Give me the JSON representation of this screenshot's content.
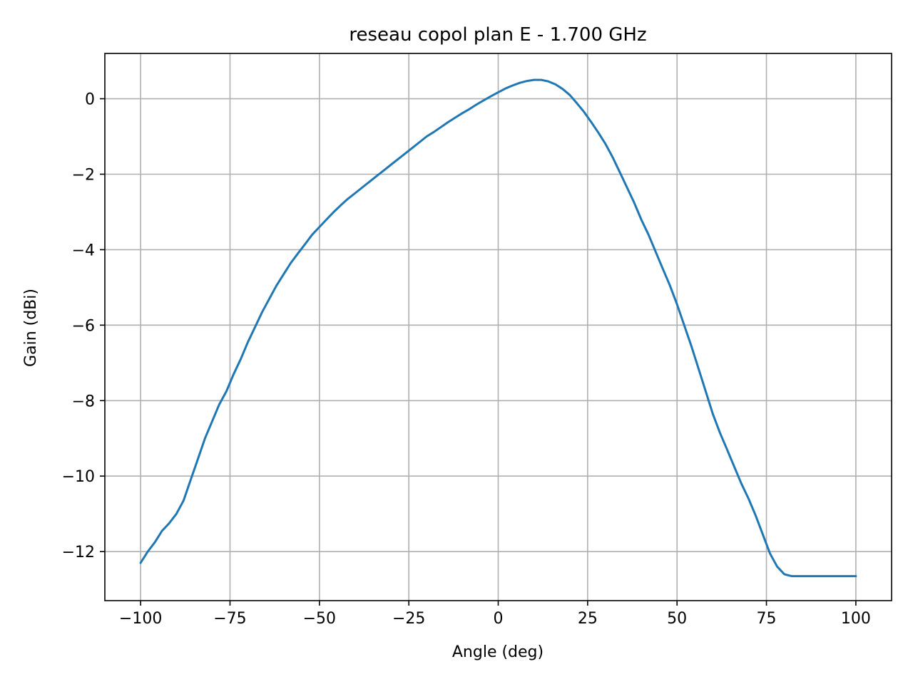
{
  "chart_data": {
    "type": "line",
    "title": "reseau copol plan E - 1.700 GHz",
    "xlabel": "Angle (deg)",
    "ylabel": "Gain (dBi)",
    "xlim": [
      -110,
      110
    ],
    "ylim": [
      -13.3,
      1.2
    ],
    "xticks": [
      -100,
      -75,
      -50,
      -25,
      0,
      25,
      50,
      75,
      100
    ],
    "xtick_labels": [
      "−100",
      "−75",
      "−50",
      "−25",
      "0",
      "25",
      "50",
      "75",
      "100"
    ],
    "yticks": [
      0,
      -2,
      -4,
      -6,
      -8,
      -10,
      -12
    ],
    "ytick_labels": [
      "0",
      "−2",
      "−4",
      "−6",
      "−8",
      "−10",
      "−12"
    ],
    "grid": true,
    "legend": "none",
    "series": [
      {
        "color": "#1f77b4",
        "x": [
          -100,
          -98,
          -96,
          -94,
          -92,
          -90,
          -88,
          -86,
          -84,
          -82,
          -80,
          -78,
          -76,
          -74,
          -72,
          -70,
          -68,
          -66,
          -64,
          -62,
          -60,
          -58,
          -56,
          -54,
          -52,
          -50,
          -48,
          -46,
          -44,
          -42,
          -40,
          -38,
          -36,
          -34,
          -32,
          -30,
          -28,
          -26,
          -24,
          -22,
          -20,
          -18,
          -16,
          -14,
          -12,
          -10,
          -8,
          -6,
          -4,
          -2,
          0,
          2,
          4,
          6,
          8,
          10,
          12,
          14,
          16,
          18,
          20,
          22,
          24,
          26,
          28,
          30,
          32,
          34,
          36,
          38,
          40,
          42,
          44,
          46,
          48,
          50,
          52,
          54,
          56,
          58,
          60,
          62,
          64,
          66,
          68,
          70,
          72,
          74,
          76,
          78,
          80,
          82,
          84,
          86,
          88,
          90,
          92,
          94,
          96,
          98,
          100
        ],
        "y": [
          -12.3,
          -12.0,
          -11.75,
          -11.45,
          -11.25,
          -11.0,
          -10.65,
          -10.1,
          -9.55,
          -9.0,
          -8.55,
          -8.1,
          -7.75,
          -7.3,
          -6.9,
          -6.45,
          -6.05,
          -5.65,
          -5.3,
          -4.95,
          -4.65,
          -4.35,
          -4.1,
          -3.85,
          -3.6,
          -3.4,
          -3.2,
          -3.0,
          -2.82,
          -2.65,
          -2.5,
          -2.35,
          -2.2,
          -2.05,
          -1.9,
          -1.75,
          -1.6,
          -1.45,
          -1.3,
          -1.15,
          -1.0,
          -0.88,
          -0.75,
          -0.62,
          -0.5,
          -0.38,
          -0.27,
          -0.15,
          -0.04,
          0.07,
          0.17,
          0.27,
          0.35,
          0.42,
          0.47,
          0.5,
          0.5,
          0.46,
          0.38,
          0.26,
          0.1,
          -0.12,
          -0.35,
          -0.62,
          -0.9,
          -1.2,
          -1.55,
          -1.95,
          -2.35,
          -2.75,
          -3.2,
          -3.6,
          -4.05,
          -4.5,
          -4.95,
          -5.45,
          -6.0,
          -6.55,
          -7.15,
          -7.75,
          -8.35,
          -8.85,
          -9.3,
          -9.75,
          -10.2,
          -10.6,
          -11.05,
          -11.55,
          -12.05,
          -12.4,
          -12.6,
          -12.65,
          -12.65,
          -12.65,
          -12.65,
          -12.65,
          -12.65,
          -12.65,
          -12.65,
          -12.65,
          -12.65
        ]
      }
    ]
  }
}
